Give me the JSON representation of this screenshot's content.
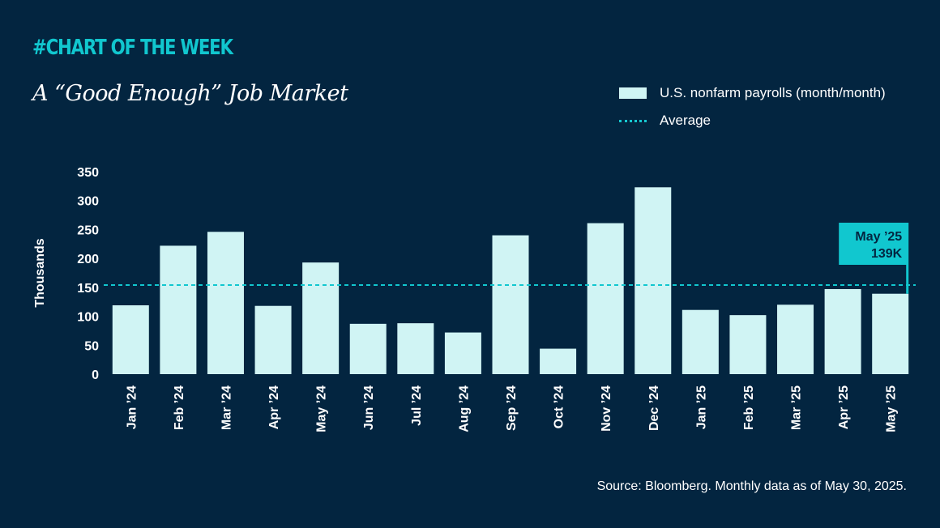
{
  "header": {
    "tag": "#CHART OF THE WEEK",
    "title": "A “Good Enough” Job Market"
  },
  "legend": {
    "bars_label": "U.S. nonfarm payrolls (month/month)",
    "average_label": "Average"
  },
  "source": "Source: Bloomberg. Monthly data as of May 30, 2025.",
  "colors": {
    "background": "#032540",
    "bar": "#d0f4f4",
    "accent": "#11c7cf"
  },
  "chart_data": {
    "type": "bar",
    "categories": [
      "Jan ’24",
      "Feb ’24",
      "Mar ’24",
      "Apr ’24",
      "May ’24",
      "Jun ’24",
      "Jul ’24",
      "Aug ’24",
      "Sep ’24",
      "Oct ’24",
      "Nov ’24",
      "Dec ’24",
      "Jan ’25",
      "Feb ’25",
      "Mar ’25",
      "Apr ’25",
      "May ’25"
    ],
    "series": [
      {
        "name": "U.S. nonfarm payrolls (month/month)",
        "values": [
          119,
          222,
          246,
          118,
          193,
          87,
          88,
          72,
          240,
          44,
          261,
          323,
          111,
          102,
          120,
          147,
          139
        ]
      }
    ],
    "average": 154,
    "ylabel": "Thousands",
    "ylim": [
      0,
      350
    ],
    "yticks": [
      0,
      50,
      100,
      150,
      200,
      250,
      300,
      350
    ],
    "grid": false,
    "callout": {
      "line1": "May ’25",
      "line2": "139K",
      "index": 16
    }
  }
}
